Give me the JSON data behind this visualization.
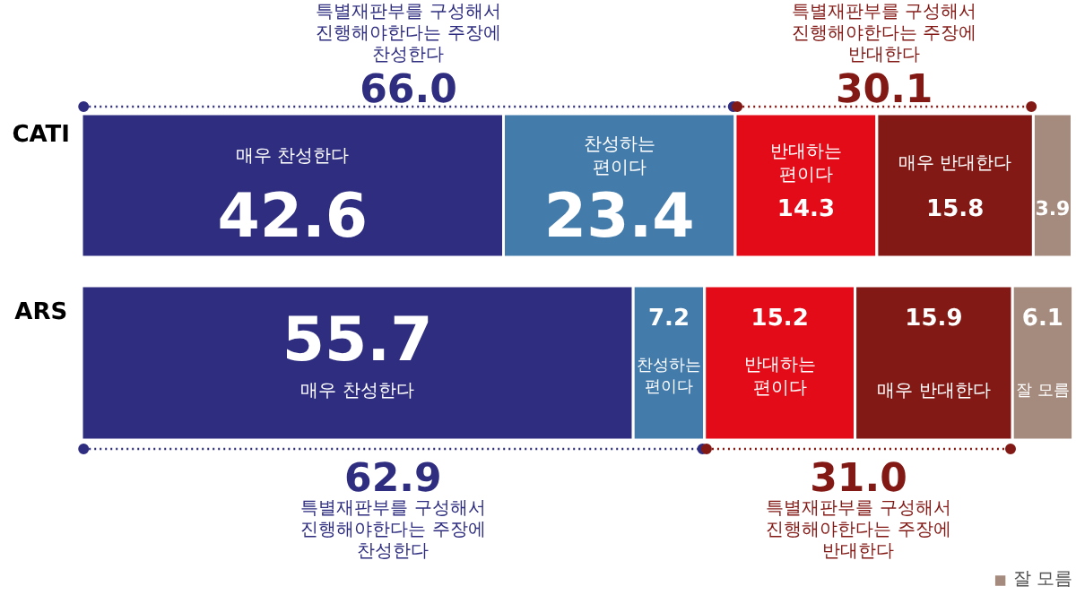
{
  "chart_data": {
    "type": "bar",
    "orientation": "horizontal",
    "stacked": true,
    "data_labels": true,
    "legend": "bottom right",
    "categories": [
      "CATI",
      "ARS"
    ],
    "series": [
      {
        "name": "매우 찬성한다",
        "color": "#2e2d80",
        "values": [
          42.6,
          55.7
        ]
      },
      {
        "name": "찬성하는\n편이다",
        "color": "#437bab",
        "values": [
          23.4,
          7.2
        ]
      },
      {
        "name": "반대하는\n편이다",
        "color": "#e30b17",
        "values": [
          14.3,
          15.2
        ]
      },
      {
        "name": "매우 반대한다",
        "color": "#821915",
        "values": [
          15.8,
          15.9
        ]
      },
      {
        "name": "잘 모름",
        "color": "#a58a7e",
        "values": [
          3.9,
          6.1
        ]
      }
    ],
    "annotations": [
      "특별재판부를 구성해서\n진행해야한다는 주장에\n찬성한다",
      "66.0",
      "특별재판부를 구성해서\n진행해야한다는 주장에\n반대한다",
      "30.1",
      "특별재판부를 구성해서\n진행해야한다는 주장에\n찬성한다",
      "62.9",
      "특별재판부를 구성해서\n진행해야한다는 주장에\n반대한다",
      "31.0"
    ]
  }
}
